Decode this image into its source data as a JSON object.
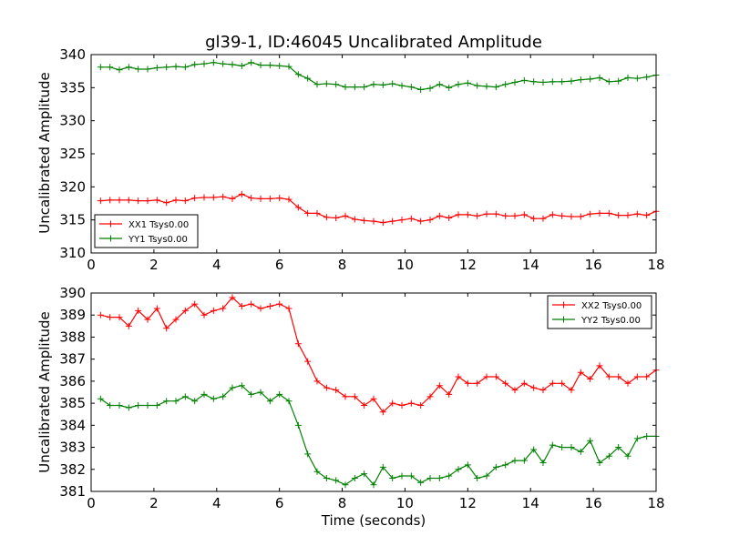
{
  "chart_data": [
    {
      "type": "line",
      "title": "gl39-1, ID:46045 Uncalibrated Amplitude",
      "xlabel": "",
      "ylabel": "Uncalibrated Amplitude",
      "xlim": [
        0,
        18
      ],
      "ylim": [
        310,
        340
      ],
      "xticks": [
        0,
        2,
        4,
        6,
        8,
        10,
        12,
        14,
        16,
        18
      ],
      "yticks": [
        310,
        315,
        320,
        325,
        330,
        335,
        340
      ],
      "grid": false,
      "legend_position": "lower-left",
      "x": [
        0.3,
        0.6,
        0.9,
        1.2,
        1.5,
        1.8,
        2.1,
        2.4,
        2.7,
        3.0,
        3.3,
        3.6,
        3.9,
        4.2,
        4.5,
        4.8,
        5.1,
        5.4,
        5.7,
        6.0,
        6.3,
        6.6,
        6.9,
        7.2,
        7.5,
        7.8,
        8.1,
        8.4,
        8.7,
        9.0,
        9.3,
        9.6,
        9.9,
        10.2,
        10.5,
        10.8,
        11.1,
        11.4,
        11.7,
        12.0,
        12.3,
        12.6,
        12.9,
        13.2,
        13.5,
        13.8,
        14.1,
        14.4,
        14.7,
        15.0,
        15.3,
        15.6,
        15.9,
        16.2,
        16.5,
        16.8,
        17.1,
        17.4,
        17.7,
        18.0
      ],
      "series": [
        {
          "name": "XX1 Tsys0.00",
          "color": "#ff0000",
          "values": [
            317.9,
            318.0,
            318.0,
            318.0,
            317.9,
            317.9,
            318.0,
            317.6,
            318.0,
            317.9,
            318.3,
            318.4,
            318.4,
            318.5,
            318.2,
            318.9,
            318.3,
            318.2,
            318.2,
            318.3,
            318.1,
            316.9,
            316.0,
            316.0,
            315.4,
            315.3,
            315.6,
            315.1,
            314.9,
            314.8,
            314.6,
            314.8,
            315.0,
            315.2,
            314.8,
            315.0,
            315.6,
            315.3,
            315.8,
            315.8,
            315.6,
            315.9,
            315.9,
            315.6,
            315.6,
            315.8,
            315.2,
            315.2,
            315.8,
            315.6,
            315.5,
            315.5,
            315.9,
            316.0,
            316.0,
            315.7,
            315.7,
            315.9,
            315.7,
            316.3
          ]
        },
        {
          "name": "YY1 Tsys0.00",
          "color": "#008000",
          "values": [
            338.1,
            338.1,
            337.7,
            338.1,
            337.8,
            337.8,
            338.0,
            338.1,
            338.2,
            338.1,
            338.5,
            338.6,
            338.8,
            338.6,
            338.5,
            338.3,
            338.8,
            338.4,
            338.4,
            338.3,
            338.2,
            337.0,
            336.4,
            335.5,
            335.6,
            335.5,
            335.1,
            335.1,
            335.1,
            335.5,
            335.4,
            335.6,
            335.3,
            335.1,
            334.7,
            334.9,
            335.5,
            335.0,
            335.5,
            335.7,
            335.3,
            335.2,
            335.1,
            335.5,
            335.8,
            336.1,
            335.9,
            335.8,
            335.9,
            335.9,
            336.0,
            336.2,
            336.3,
            336.5,
            335.9,
            336.0,
            336.5,
            336.4,
            336.6,
            336.9
          ]
        }
      ]
    },
    {
      "type": "line",
      "title": "",
      "xlabel": "Time (seconds)",
      "ylabel": "Uncalibrated Amplitude",
      "xlim": [
        0,
        18
      ],
      "ylim": [
        381,
        390
      ],
      "xticks": [
        0,
        2,
        4,
        6,
        8,
        10,
        12,
        14,
        16,
        18
      ],
      "yticks": [
        381,
        382,
        383,
        384,
        385,
        386,
        387,
        388,
        389,
        390
      ],
      "grid": false,
      "legend_position": "upper-right",
      "x": [
        0.3,
        0.6,
        0.9,
        1.2,
        1.5,
        1.8,
        2.1,
        2.4,
        2.7,
        3.0,
        3.3,
        3.6,
        3.9,
        4.2,
        4.5,
        4.8,
        5.1,
        5.4,
        5.7,
        6.0,
        6.3,
        6.6,
        6.9,
        7.2,
        7.5,
        7.8,
        8.1,
        8.4,
        8.7,
        9.0,
        9.3,
        9.6,
        9.9,
        10.2,
        10.5,
        10.8,
        11.1,
        11.4,
        11.7,
        12.0,
        12.3,
        12.6,
        12.9,
        13.2,
        13.5,
        13.8,
        14.1,
        14.4,
        14.7,
        15.0,
        15.3,
        15.6,
        15.9,
        16.2,
        16.5,
        16.8,
        17.1,
        17.4,
        17.7,
        18.0
      ],
      "series": [
        {
          "name": "XX2 Tsys0.00",
          "color": "#ff0000",
          "values": [
            389.0,
            388.9,
            388.9,
            388.5,
            389.2,
            388.8,
            389.3,
            388.4,
            388.8,
            389.2,
            389.5,
            389.0,
            389.2,
            389.3,
            389.8,
            389.4,
            389.5,
            389.3,
            389.4,
            389.5,
            389.3,
            387.7,
            386.9,
            386.0,
            385.7,
            385.6,
            385.3,
            385.3,
            384.9,
            385.2,
            384.6,
            385.0,
            384.9,
            385.0,
            384.9,
            385.3,
            385.8,
            385.4,
            386.2,
            385.9,
            385.9,
            386.2,
            386.2,
            385.9,
            385.6,
            385.9,
            385.7,
            385.6,
            385.9,
            385.9,
            385.6,
            386.4,
            386.1,
            386.7,
            386.2,
            386.2,
            385.9,
            386.2,
            386.2,
            386.5
          ]
        },
        {
          "name": "YY2 Tsys0.00",
          "color": "#008000",
          "values": [
            385.2,
            384.9,
            384.9,
            384.8,
            384.9,
            384.9,
            384.9,
            385.1,
            385.1,
            385.3,
            385.1,
            385.4,
            385.2,
            385.3,
            385.7,
            385.8,
            385.4,
            385.5,
            385.1,
            385.4,
            385.1,
            384.0,
            382.7,
            381.9,
            381.6,
            381.5,
            381.3,
            381.6,
            381.8,
            381.3,
            382.1,
            381.6,
            381.7,
            381.7,
            381.4,
            381.6,
            381.6,
            381.7,
            382.0,
            382.2,
            381.6,
            381.7,
            382.1,
            382.2,
            382.4,
            382.4,
            382.9,
            382.3,
            383.1,
            383.0,
            383.0,
            382.8,
            383.3,
            382.3,
            382.6,
            383.0,
            382.6,
            383.4,
            383.5,
            383.5
          ]
        }
      ]
    }
  ]
}
